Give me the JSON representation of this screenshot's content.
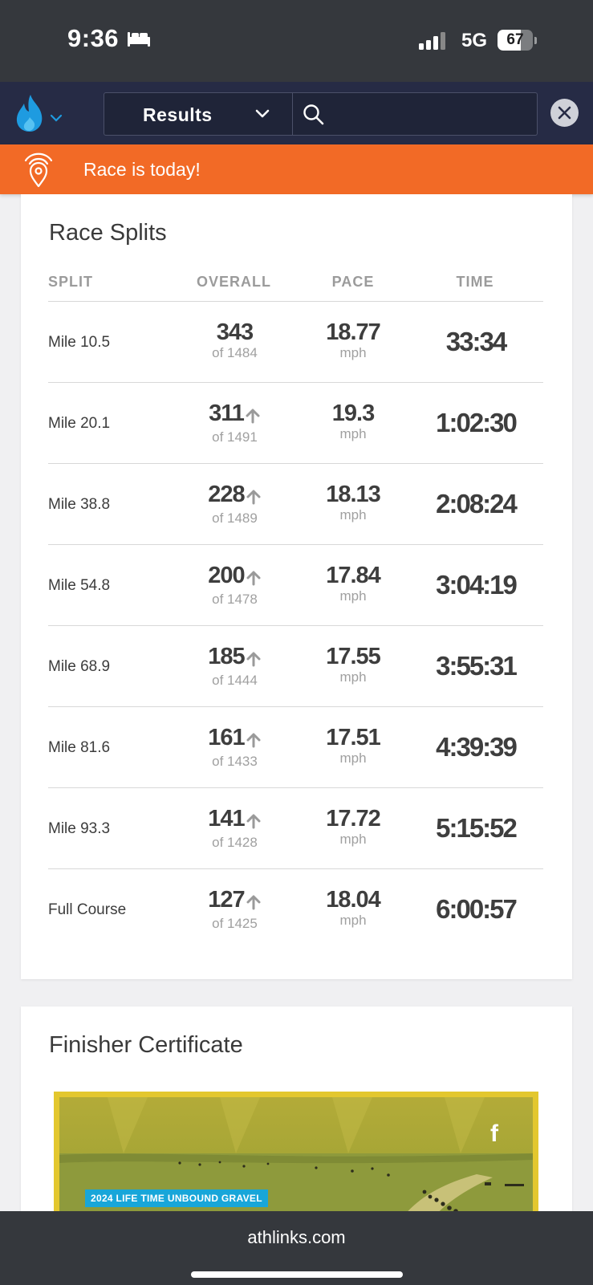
{
  "status_bar": {
    "time": "9:36",
    "network": "5G",
    "battery": "67",
    "battery_level": 0.67
  },
  "header": {
    "logo_icon": "flame-icon",
    "dropdown_label": "Results",
    "search_placeholder": ""
  },
  "banner": {
    "text": "Race is today!"
  },
  "race_splits": {
    "title": "Race Splits",
    "columns": {
      "split": "SPLIT",
      "overall": "OVERALL",
      "pace": "PACE",
      "time": "TIME"
    },
    "rows": [
      {
        "name": "Mile 10.5",
        "rank": "343",
        "of": "of 1484",
        "improved": false,
        "pace": "18.77",
        "unit": "mph",
        "time": "33:34"
      },
      {
        "name": "Mile 20.1",
        "rank": "311",
        "of": "of 1491",
        "improved": true,
        "pace": "19.3",
        "unit": "mph",
        "time": "1:02:30"
      },
      {
        "name": "Mile 38.8",
        "rank": "228",
        "of": "of 1489",
        "improved": true,
        "pace": "18.13",
        "unit": "mph",
        "time": "2:08:24"
      },
      {
        "name": "Mile 54.8",
        "rank": "200",
        "of": "of 1478",
        "improved": true,
        "pace": "17.84",
        "unit": "mph",
        "time": "3:04:19"
      },
      {
        "name": "Mile 68.9",
        "rank": "185",
        "of": "of 1444",
        "improved": true,
        "pace": "17.55",
        "unit": "mph",
        "time": "3:55:31"
      },
      {
        "name": "Mile 81.6",
        "rank": "161",
        "of": "of 1433",
        "improved": true,
        "pace": "17.51",
        "unit": "mph",
        "time": "4:39:39"
      },
      {
        "name": "Mile 93.3",
        "rank": "141",
        "of": "of 1428",
        "improved": true,
        "pace": "17.72",
        "unit": "mph",
        "time": "5:15:52"
      },
      {
        "name": "Full Course",
        "rank": "127",
        "of": "of 1425",
        "improved": true,
        "pace": "18.04",
        "unit": "mph",
        "time": "6:00:57"
      }
    ]
  },
  "certificate": {
    "title": "Finisher Certificate",
    "badge": "2024 LIFE TIME UNBOUND GRAVEL",
    "facebook_glyph": "f"
  },
  "browser": {
    "url": "athlinks.com"
  },
  "colors": {
    "header_bg": "#262b45",
    "banner_bg": "#f26a26",
    "status_bg": "#35383d",
    "badge_bg": "#18a6d9"
  }
}
